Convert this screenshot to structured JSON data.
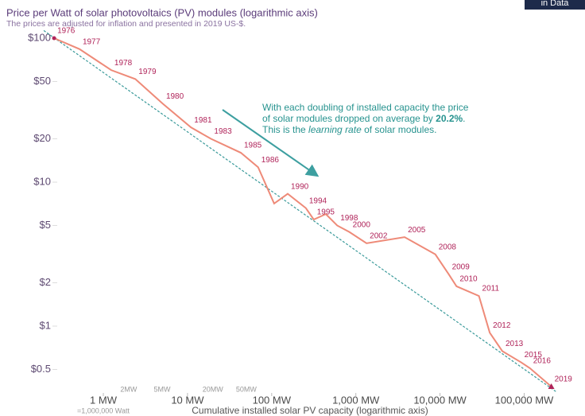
{
  "chart_data": {
    "type": "line",
    "logo": "in Data",
    "title": "Price per Watt of solar photovoltaics (PV) modules (logarithmic axis)",
    "subtitle": "The prices are adjusted for inflation and presented in 2019 US-$.",
    "x_label": "Cumulative installed solar PV capacity (logarithmic axis)",
    "x_sublabel": "=1,000,000 Watt",
    "annotation": [
      [
        {
          "text": "With each doubling of installed capacity the price"
        }
      ],
      [
        {
          "text": "of solar modules dropped on average by "
        },
        {
          "text": "20.2%",
          "bold": true
        },
        {
          "text": "."
        }
      ],
      [
        {
          "text": "This is the "
        },
        {
          "text": "learning rate",
          "italic": true
        },
        {
          "text": " of solar modules."
        }
      ]
    ],
    "xlog": true,
    "ylog": true,
    "xlim": [
      0.2,
      300000
    ],
    "ylim": [
      0.35,
      115
    ],
    "xticks": [
      {
        "value": 1,
        "label": "1 MW"
      },
      {
        "value": 10,
        "label": "10 MW"
      },
      {
        "value": 100,
        "label": "100 MW"
      },
      {
        "value": 1000,
        "label": "1,000 MW"
      },
      {
        "value": 10000,
        "label": "10,000 MW"
      },
      {
        "value": 100000,
        "label": "100,000 MW"
      }
    ],
    "xminorticks": [
      {
        "value": 2,
        "label": "2MW"
      },
      {
        "value": 5,
        "label": "5MW"
      },
      {
        "value": 20,
        "label": "20MW"
      },
      {
        "value": 50,
        "label": "50MW"
      }
    ],
    "yticks": [
      {
        "value": 100,
        "label": "$100"
      },
      {
        "value": 50,
        "label": "$50"
      },
      {
        "value": 20,
        "label": "$20"
      },
      {
        "value": 10,
        "label": "$10"
      },
      {
        "value": 5,
        "label": "$5"
      },
      {
        "value": 2,
        "label": "$2"
      },
      {
        "value": 1,
        "label": "$1"
      },
      {
        "value": 0.5,
        "label": "$0.5"
      }
    ],
    "grid": false,
    "series": [
      {
        "color": "#ee8a78",
        "x": [
          0.26,
          0.52,
          1.24,
          2.4,
          5.1,
          11,
          19,
          43,
          69,
          107,
          155,
          255,
          316,
          440,
          600,
          840,
          1340,
          3800,
          8800,
          12700,
          15700,
          29000,
          39000,
          55000,
          92000,
          117000,
          210000
        ],
        "values": [
          100,
          84,
          60,
          52,
          35,
          24,
          20,
          16,
          12.7,
          7.1,
          8.3,
          6.6,
          5.5,
          6,
          5,
          4.5,
          3.76,
          4.15,
          3.15,
          2.29,
          1.89,
          1.62,
          0.9,
          0.67,
          0.56,
          0.51,
          0.38
        ],
        "labels": [
          "1976",
          "1977",
          "1978",
          "1979",
          "1980",
          "1981",
          "1983",
          "1985",
          "1986",
          null,
          "1990",
          "1994",
          "1995",
          null,
          "1998",
          "2000",
          "2002",
          "2005",
          "2008",
          "2009",
          "2010",
          "2011",
          "2012",
          "2013",
          "2015",
          "2016",
          "2019"
        ]
      }
    ],
    "trend": {
      "color": "#3a9a9a",
      "dashed": true,
      "x": [
        0.196,
        240000
      ],
      "values": [
        113,
        0.35
      ]
    }
  }
}
